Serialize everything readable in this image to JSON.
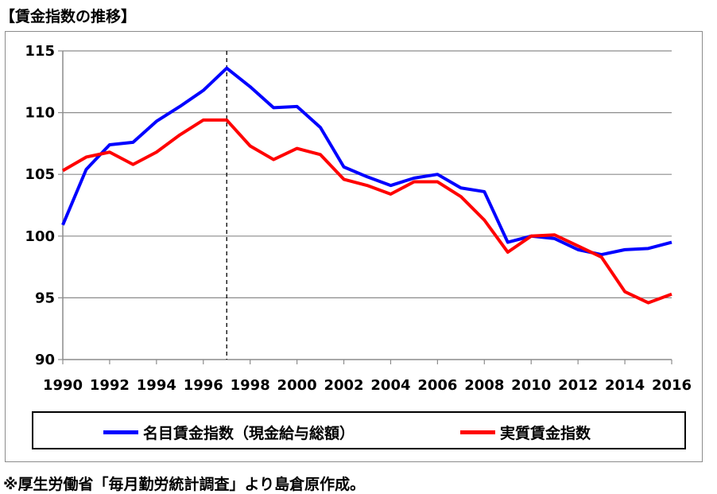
{
  "title": "【賃金指数の推移】",
  "footnote": "※厚生労働省「毎月勤労統計調査」より島倉原作成。",
  "chart_data": {
    "type": "line",
    "x": [
      1990,
      1991,
      1992,
      1993,
      1994,
      1995,
      1996,
      1997,
      1998,
      1999,
      2000,
      2001,
      2002,
      2003,
      2004,
      2005,
      2006,
      2007,
      2008,
      2009,
      2010,
      2011,
      2012,
      2013,
      2014,
      2015,
      2016
    ],
    "x_ticks": [
      "1990",
      "1992",
      "1994",
      "1996",
      "1998",
      "2000",
      "2002",
      "2004",
      "2006",
      "2008",
      "2010",
      "2012",
      "2014",
      "2016"
    ],
    "y_ticks": [
      "90",
      "95",
      "100",
      "105",
      "110",
      "115"
    ],
    "ylim": [
      90,
      115
    ],
    "xlim": [
      1990,
      2016
    ],
    "grid": true,
    "legend_position": "bottom",
    "reference_line_x": 1997,
    "series": [
      {
        "name": "名目賃金指数（現金給与総額）",
        "color": "#0000ff",
        "values": [
          100.9,
          105.4,
          107.4,
          107.6,
          109.3,
          110.5,
          111.8,
          113.6,
          112.1,
          110.4,
          110.5,
          108.8,
          105.6,
          104.8,
          104.1,
          104.7,
          105.0,
          103.9,
          103.6,
          99.5,
          100.0,
          99.8,
          98.9,
          98.5,
          98.9,
          99.0,
          99.5
        ]
      },
      {
        "name": "実質賃金指数",
        "color": "#ff0000",
        "values": [
          105.3,
          106.4,
          106.8,
          105.8,
          106.8,
          108.2,
          109.4,
          109.4,
          107.3,
          106.2,
          107.1,
          106.6,
          104.6,
          104.1,
          103.4,
          104.4,
          104.4,
          103.2,
          101.3,
          98.7,
          100.0,
          100.1,
          99.2,
          98.3,
          95.5,
          94.6,
          95.3
        ]
      }
    ]
  }
}
